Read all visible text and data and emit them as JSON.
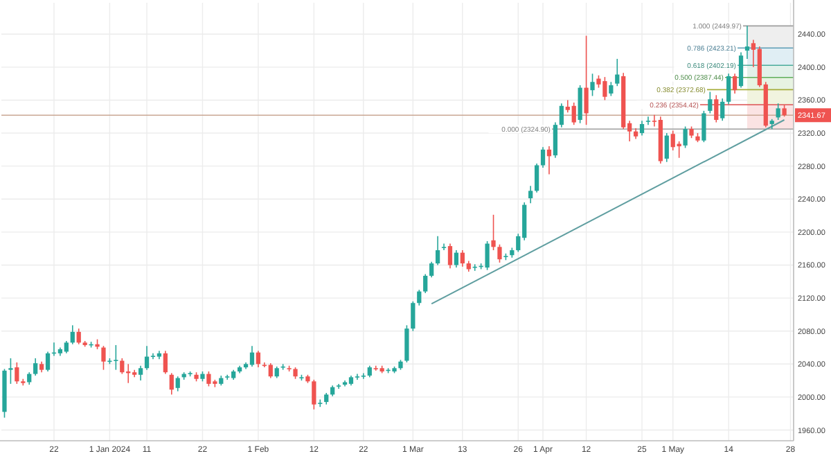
{
  "chart_data": {
    "type": "candlestick",
    "categories": [
      null,
      null,
      null,
      null,
      null,
      null,
      null,
      null,
      "22",
      null,
      null,
      null,
      null,
      null,
      null,
      null,
      null,
      "1 Jan 2024",
      null,
      null,
      null,
      null,
      null,
      "11",
      null,
      null,
      null,
      null,
      null,
      null,
      null,
      null,
      "22",
      null,
      null,
      null,
      null,
      null,
      null,
      null,
      null,
      "1 Feb",
      null,
      null,
      null,
      null,
      null,
      null,
      null,
      null,
      "12",
      null,
      null,
      null,
      null,
      null,
      null,
      null,
      "22",
      null,
      null,
      null,
      null,
      null,
      null,
      null,
      "1 Mar",
      null,
      null,
      null,
      null,
      null,
      null,
      null,
      "13",
      null,
      null,
      null,
      null,
      null,
      null,
      null,
      null,
      "26",
      null,
      null,
      null,
      "1 Apr",
      null,
      null,
      null,
      null,
      null,
      null,
      "12",
      null,
      null,
      null,
      null,
      null,
      null,
      null,
      null,
      "25",
      null,
      null,
      null,
      null,
      "1 May",
      null,
      null,
      null,
      null,
      null,
      null,
      null,
      null,
      "14",
      null,
      null,
      null,
      null,
      null,
      null,
      null,
      null,
      null,
      "28"
    ],
    "ohlc": [
      [
        1982,
        2034,
        1975,
        2032
      ],
      [
        2033,
        2047,
        2016,
        2035
      ],
      [
        2036,
        2042,
        2016,
        2019
      ],
      [
        2019,
        2022,
        2014,
        2017
      ],
      [
        2018,
        2030,
        2015,
        2028
      ],
      [
        2028,
        2047,
        2026,
        2041
      ],
      [
        2040,
        2043,
        2030,
        2033
      ],
      [
        2033,
        2055,
        2031,
        2053
      ],
      [
        2053,
        2066,
        2050,
        2054
      ],
      [
        2053,
        2060,
        2050,
        2058
      ],
      [
        2055,
        2068,
        2053,
        2066
      ],
      [
        2066,
        2087,
        2064,
        2079
      ],
      [
        2079,
        2083,
        2064,
        2066
      ],
      [
        2066,
        2068,
        2061,
        2063
      ],
      [
        2063,
        2067,
        2060,
        2064
      ],
      [
        2064,
        2070,
        2058,
        2061
      ],
      [
        2060,
        2062,
        2033,
        2043
      ],
      [
        2044,
        2047,
        2040,
        2044
      ],
      [
        2044,
        2063,
        2033,
        2045
      ],
      [
        2044,
        2047,
        2028,
        2030
      ],
      [
        2031,
        2040,
        2017,
        2029
      ],
      [
        2030,
        2033,
        2024,
        2027
      ],
      [
        2027,
        2038,
        2020,
        2035
      ],
      [
        2035,
        2062,
        2033,
        2049
      ],
      [
        2050,
        2053,
        2046,
        2050
      ],
      [
        2049,
        2056,
        2046,
        2053
      ],
      [
        2053,
        2056,
        2028,
        2030
      ],
      [
        2027,
        2029,
        2003,
        2009
      ],
      [
        2011,
        2025,
        2007,
        2023
      ],
      [
        2024,
        2030,
        2021,
        2028
      ],
      [
        2028,
        2031,
        2025,
        2029
      ],
      [
        2027,
        2030,
        2019,
        2022
      ],
      [
        2022,
        2031,
        2019,
        2028
      ],
      [
        2028,
        2031,
        2013,
        2016
      ],
      [
        2019,
        2021,
        2012,
        2016
      ],
      [
        2016,
        2026,
        2014,
        2023
      ],
      [
        2024,
        2027,
        2021,
        2025
      ],
      [
        2023,
        2033,
        2021,
        2031
      ],
      [
        2031,
        2038,
        2029,
        2036
      ],
      [
        2036,
        2042,
        2034,
        2040
      ],
      [
        2039,
        2062,
        2037,
        2054
      ],
      [
        2054,
        2056,
        2036,
        2040
      ],
      [
        2039,
        2042,
        2036,
        2038
      ],
      [
        2039,
        2041,
        2023,
        2025
      ],
      [
        2025,
        2037,
        2023,
        2035
      ],
      [
        2036,
        2040,
        2033,
        2037
      ],
      [
        2035,
        2038,
        2031,
        2034
      ],
      [
        2034,
        2036,
        2022,
        2025
      ],
      [
        2023,
        2027,
        2020,
        2024
      ],
      [
        2025,
        2027,
        2017,
        2019
      ],
      [
        2019,
        2021,
        1985,
        1991
      ],
      [
        1992,
        1997,
        1988,
        1993
      ],
      [
        1994,
        2005,
        1991,
        2003
      ],
      [
        2003,
        2014,
        2001,
        2012
      ],
      [
        2013,
        2016,
        2010,
        2014
      ],
      [
        2015,
        2020,
        2013,
        2018
      ],
      [
        2016,
        2026,
        2014,
        2024
      ],
      [
        2024,
        2028,
        2021,
        2025
      ],
      [
        2025,
        2029,
        2022,
        2026
      ],
      [
        2026,
        2038,
        2024,
        2036
      ],
      [
        2035,
        2038,
        2032,
        2034
      ],
      [
        2035,
        2038,
        2029,
        2031
      ],
      [
        2032,
        2035,
        2029,
        2033
      ],
      [
        2031,
        2037,
        2029,
        2035
      ],
      [
        2035,
        2045,
        2033,
        2043
      ],
      [
        2044,
        2087,
        2042,
        2083
      ],
      [
        2083,
        2116,
        2080,
        2114
      ],
      [
        2114,
        2130,
        2111,
        2128
      ],
      [
        2128,
        2149,
        2126,
        2147
      ],
      [
        2147,
        2164,
        2145,
        2162
      ],
      [
        2162,
        2195,
        2160,
        2178
      ],
      [
        2181,
        2186,
        2178,
        2182
      ],
      [
        2183,
        2186,
        2156,
        2160
      ],
      [
        2160,
        2178,
        2157,
        2175
      ],
      [
        2175,
        2178,
        2158,
        2162
      ],
      [
        2162,
        2165,
        2152,
        2155
      ],
      [
        2157,
        2161,
        2153,
        2158
      ],
      [
        2158,
        2162,
        2155,
        2159
      ],
      [
        2157,
        2189,
        2154,
        2186
      ],
      [
        2190,
        2221,
        2178,
        2182
      ],
      [
        2182,
        2185,
        2163,
        2167
      ],
      [
        2170,
        2174,
        2166,
        2171
      ],
      [
        2172,
        2181,
        2169,
        2178
      ],
      [
        2178,
        2198,
        2176,
        2195
      ],
      [
        2193,
        2236,
        2190,
        2233
      ],
      [
        2241,
        2256,
        2235,
        2250
      ],
      [
        2250,
        2283,
        2248,
        2281
      ],
      [
        2281,
        2303,
        2278,
        2300
      ],
      [
        2300,
        2304,
        2270,
        2292
      ],
      [
        2293,
        2333,
        2290,
        2330
      ],
      [
        2330,
        2356,
        2327,
        2353
      ],
      [
        2352,
        2360,
        2345,
        2348
      ],
      [
        2353,
        2357,
        2330,
        2333
      ],
      [
        2336,
        2378,
        2332,
        2375
      ],
      [
        2375,
        2438,
        2330,
        2344
      ],
      [
        2372,
        2392,
        2365,
        2382
      ],
      [
        2386,
        2390,
        2375,
        2379
      ],
      [
        2383,
        2388,
        2360,
        2364
      ],
      [
        2368,
        2382,
        2365,
        2378
      ],
      [
        2380,
        2410,
        2377,
        2391
      ],
      [
        2389,
        2393,
        2325,
        2327
      ],
      [
        2332,
        2335,
        2310,
        2322
      ],
      [
        2322,
        2326,
        2313,
        2316
      ],
      [
        2320,
        2335,
        2317,
        2331
      ],
      [
        2334,
        2340,
        2330,
        2335
      ],
      [
        2335,
        2342,
        2328,
        2334
      ],
      [
        2336,
        2340,
        2283,
        2286
      ],
      [
        2289,
        2320,
        2285,
        2317
      ],
      [
        2319,
        2323,
        2299,
        2303
      ],
      [
        2307,
        2310,
        2290,
        2304
      ],
      [
        2305,
        2328,
        2302,
        2325
      ],
      [
        2325,
        2328,
        2314,
        2317
      ],
      [
        2316,
        2320,
        2309,
        2311
      ],
      [
        2311,
        2347,
        2309,
        2344
      ],
      [
        2347,
        2370,
        2344,
        2361
      ],
      [
        2361,
        2366,
        2333,
        2336
      ],
      [
        2338,
        2362,
        2335,
        2358
      ],
      [
        2358,
        2392,
        2355,
        2389
      ],
      [
        2389,
        2392,
        2368,
        2372
      ],
      [
        2377,
        2418,
        2375,
        2414
      ],
      [
        2420,
        2449.97,
        2410,
        2425
      ],
      [
        2429,
        2433,
        2400,
        2421
      ],
      [
        2422,
        2425,
        2376,
        2378
      ],
      [
        2379,
        2382,
        2327,
        2329
      ],
      [
        2331,
        2337,
        2324.9,
        2335
      ],
      [
        2339,
        2356,
        2336,
        2350
      ],
      [
        2350,
        2354,
        2340,
        2341.67
      ],
      null
    ],
    "series": [
      {
        "type": "line",
        "color": "#5f9ea0",
        "values": [
          null,
          null,
          null,
          null,
          null,
          null,
          null,
          null,
          null,
          null,
          null,
          null,
          null,
          null,
          null,
          null,
          null,
          null,
          null,
          null,
          null,
          null,
          null,
          null,
          null,
          null,
          null,
          null,
          null,
          null,
          null,
          null,
          null,
          null,
          null,
          null,
          null,
          null,
          null,
          null,
          null,
          null,
          null,
          null,
          null,
          null,
          null,
          null,
          null,
          null,
          null,
          null,
          null,
          null,
          null,
          null,
          null,
          null,
          null,
          null,
          null,
          null,
          null,
          null,
          null,
          null,
          null,
          null,
          null,
          2113,
          null,
          null,
          null,
          null,
          null,
          null,
          null,
          null,
          null,
          null,
          null,
          null,
          null,
          null,
          null,
          null,
          null,
          null,
          null,
          null,
          null,
          null,
          null,
          null,
          null,
          null,
          null,
          null,
          null,
          null,
          null,
          null,
          null,
          null,
          null,
          null,
          null,
          null,
          null,
          null,
          null,
          null,
          null,
          null,
          null,
          null,
          null,
          null,
          null,
          null,
          null,
          null,
          null,
          null,
          null,
          null,
          2336,
          null
        ]
      }
    ],
    "ylim": [
      1947,
      2478
    ],
    "yticks": [
      {
        "value": 1960,
        "label": "1960.00"
      },
      {
        "value": 2000,
        "label": "2000.00"
      },
      {
        "value": 2040,
        "label": "2040.00"
      },
      {
        "value": 2080,
        "label": "2080.00"
      },
      {
        "value": 2120,
        "label": "2120.00"
      },
      {
        "value": 2160,
        "label": "2160.00"
      },
      {
        "value": 2200,
        "label": "2200.00"
      },
      {
        "value": 2240,
        "label": "2240.00"
      },
      {
        "value": 2280,
        "label": "2280.00"
      },
      {
        "value": 2320,
        "label": "2320.00"
      },
      {
        "value": 2360,
        "label": "2360.00"
      },
      {
        "value": 2400,
        "label": "2400.00"
      },
      {
        "value": 2440,
        "label": "2440.00"
      }
    ],
    "grid": true,
    "bands": [
      {
        "axis": "y",
        "from": 2324.9,
        "to": 2354.42,
        "color": "#fbe3e3"
      },
      {
        "axis": "y",
        "from": 2354.42,
        "to": 2372.68,
        "color": "#f1f4df"
      },
      {
        "axis": "y",
        "from": 2372.68,
        "to": 2387.44,
        "color": "#e7f3e2"
      },
      {
        "axis": "y",
        "from": 2387.44,
        "to": 2402.19,
        "color": "#e2f1ea"
      },
      {
        "axis": "y",
        "from": 2402.19,
        "to": 2423.21,
        "color": "#e0eef4"
      },
      {
        "axis": "y",
        "from": 2423.21,
        "to": 2449.97,
        "color": "#eeeeee"
      }
    ],
    "ref_lines": [
      {
        "axis": "y",
        "value": 2341.67,
        "label": "2341.67",
        "color": "#c9a793"
      },
      {
        "axis": "y",
        "value": 2449.97,
        "label": "1.000 (2449.97)",
        "color": "#9e9e9e"
      },
      {
        "axis": "y",
        "value": 2423.21,
        "label": "0.786 (2423.21)",
        "color": "#5b9bb5"
      },
      {
        "axis": "y",
        "value": 2402.19,
        "label": "0.618 (2402.19)",
        "color": "#4aab9a"
      },
      {
        "axis": "y",
        "value": 2387.44,
        "label": "0.500 (2387.44)",
        "color": "#5fae5a"
      },
      {
        "axis": "y",
        "value": 2372.68,
        "label": "0.382 (2372.68)",
        "color": "#a6ad3c"
      },
      {
        "axis": "y",
        "value": 2354.42,
        "label": "0.236 (2354.42)",
        "color": "#e06666"
      },
      {
        "axis": "y",
        "value": 2324.9,
        "label": "0.000 (2324.90)",
        "color": "#9e9e9e"
      }
    ]
  }
}
